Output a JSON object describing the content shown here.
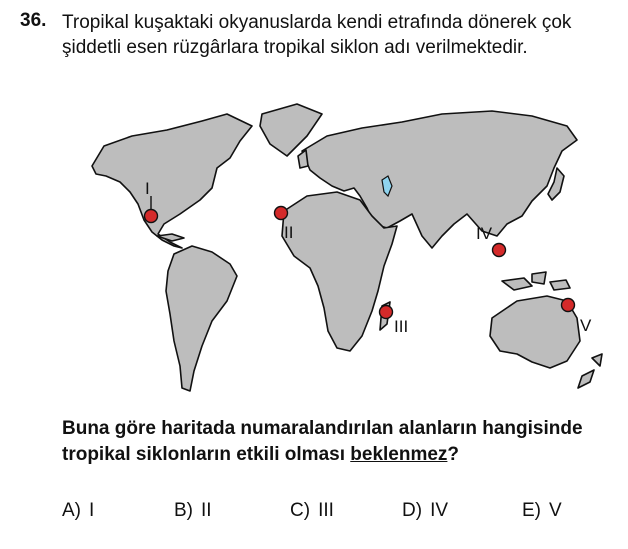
{
  "question": {
    "number": "36.",
    "stem": "Tropikal kuşaktaki okyanuslarda kendi etrafında dönerek çok şiddetli esen rüzgârlara tropikal siklon adı verilmektedir.",
    "prompt_before": "Buna göre haritada numaralandırılan alanların hangisinde tropikal siklonların etkili olması ",
    "prompt_emph": "beklenmez",
    "prompt_after": "?"
  },
  "map": {
    "colors": {
      "land": "#bdbdbd",
      "outline": "#111111",
      "marker": "#d42a2a",
      "lake": "#8fd3ee"
    },
    "markers": [
      {
        "label": "I"
      },
      {
        "label": "II"
      },
      {
        "label": "III"
      },
      {
        "label": "IV"
      },
      {
        "label": "V"
      }
    ]
  },
  "options": [
    {
      "letter": "A)",
      "text": "I"
    },
    {
      "letter": "B)",
      "text": "II"
    },
    {
      "letter": "C)",
      "text": "III"
    },
    {
      "letter": "D)",
      "text": "IV"
    },
    {
      "letter": "E)",
      "text": "V"
    }
  ]
}
